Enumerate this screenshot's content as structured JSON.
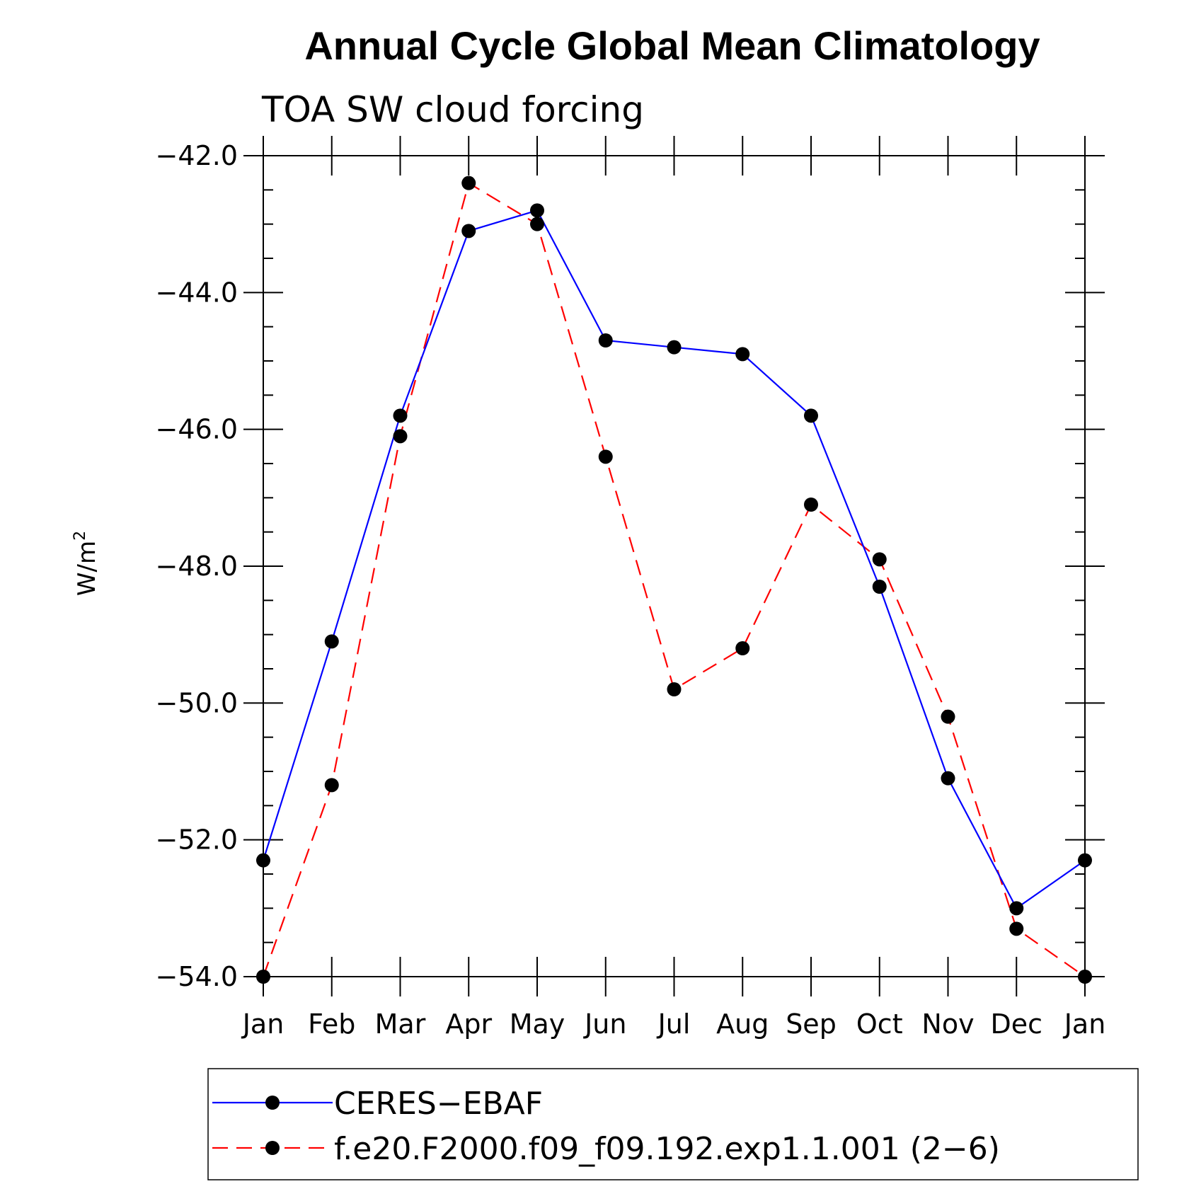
{
  "chart_data": {
    "type": "line",
    "title": "Annual Cycle Global Mean Climatology",
    "subtitle": "TOA SW cloud forcing",
    "ylabel": "W/m",
    "ylabel_sup": "2",
    "xlabel": "",
    "categories": [
      "Jan",
      "Feb",
      "Mar",
      "Apr",
      "May",
      "Jun",
      "Jul",
      "Aug",
      "Sep",
      "Oct",
      "Nov",
      "Dec",
      "Jan"
    ],
    "ylim": [
      -54.0,
      -42.0
    ],
    "yticks": [
      -42.0,
      -44.0,
      -46.0,
      -48.0,
      -50.0,
      -52.0,
      -54.0
    ],
    "ytick_labels": [
      "−42.0",
      "−44.0",
      "−46.0",
      "−48.0",
      "−50.0",
      "−52.0",
      "−54.0"
    ],
    "grid": false,
    "legend_position": "bottom",
    "series": [
      {
        "name": "CERES−EBAF",
        "color": "#0000ff",
        "dash": "solid",
        "values": [
          -52.3,
          -49.1,
          -45.8,
          -43.1,
          -42.8,
          -44.7,
          -44.8,
          -44.9,
          -45.8,
          -48.3,
          -51.1,
          -53.0,
          -52.3
        ]
      },
      {
        "name": "f.e20.F2000.f09_f09.192.exp1.1.001 (2−6)",
        "color": "#ff0000",
        "dash": "dashed",
        "values": [
          -54.0,
          -51.2,
          -46.1,
          -42.4,
          -43.0,
          -46.4,
          -49.8,
          -49.2,
          -47.1,
          -47.9,
          -50.2,
          -53.3,
          -54.0
        ]
      }
    ]
  }
}
